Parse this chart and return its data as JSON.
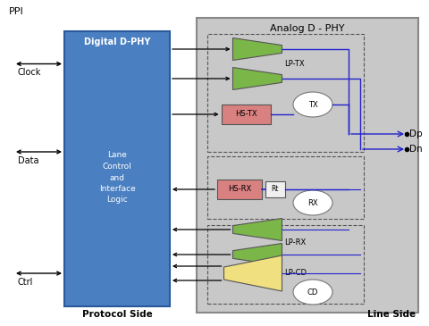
{
  "title_digital": "Digital D-PHY",
  "title_analog": "Analog D - PHY",
  "label_ppi": "PPI",
  "label_clock": "Clock",
  "label_data": "Data",
  "label_ctrl": "Ctrl",
  "label_protocol": "Protocol Side",
  "label_line": "Line Side",
  "label_lane": "Lane\nControl\nand\nInterface\nLogic",
  "label_lptx": "LP-TX",
  "label_hstx": "HS-TX",
  "label_hsrx": "HS-RX",
  "label_rt": "Rt",
  "label_lprx": "LP-RX",
  "label_lpcd": "LP-CD",
  "label_tx": "TX",
  "label_rx": "RX",
  "label_cd": "CD",
  "label_dp": "Dp",
  "label_dn": "Dn",
  "digital_block_color": "#4a7fc1",
  "analog_bg_color": "#c8c8c8",
  "lptx_green": "#7ab648",
  "hstx_red": "#d98080",
  "hsrx_red": "#d98080",
  "lprx_green": "#7ab648",
  "lpcd_yellow": "#f0e080",
  "blue_line": "#2222cc",
  "figsize": [
    4.8,
    3.65
  ],
  "dpi": 100
}
